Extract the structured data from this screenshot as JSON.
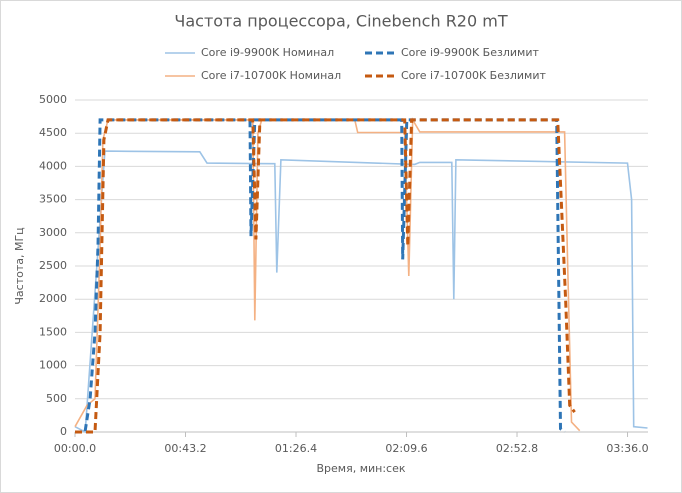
{
  "chart_data": {
    "type": "line",
    "title": "Частота процессора, Cinebench R20 mT",
    "x_label": "Время, мин:сек",
    "y_label": "Частота, МГц",
    "xlim": [
      0,
      224
    ],
    "xticks": [
      {
        "value": 0,
        "label": "00:00.0"
      },
      {
        "value": 43.2,
        "label": "00:43.2"
      },
      {
        "value": 86.4,
        "label": "01:26.4"
      },
      {
        "value": 129.6,
        "label": "02:09.6"
      },
      {
        "value": 172.8,
        "label": "02:52.8"
      },
      {
        "value": 216,
        "label": "03:36.0"
      }
    ],
    "ylim": [
      0,
      5000
    ],
    "yticks": [
      0,
      500,
      1000,
      1500,
      2000,
      2500,
      3000,
      3500,
      4000,
      4500,
      5000
    ],
    "grid": true,
    "series": [
      {
        "name": "Core i9-9900K Безлимит",
        "color": "#2e75b6",
        "dash": true,
        "x": [
          0,
          3.9,
          5.9,
          7.8,
          9,
          9.8,
          68.4,
          68.8,
          70.3,
          127.7,
          128.1,
          129.7,
          188.3,
          189.8,
          191.4
        ],
        "values": [
          0,
          0,
          500,
          1500,
          2800,
          4700,
          4700,
          2950,
          4700,
          4700,
          2600,
          4700,
          4700,
          50,
          0
        ]
      },
      {
        "name": "Core i9-9900K Номинал",
        "color": "#9dc3e6",
        "dash": false,
        "x": [
          0,
          4,
          11.7,
          48.8,
          51.6,
          78.1,
          78.9,
          80.5,
          132.8,
          134.8,
          147.3,
          148.1,
          148.9,
          216,
          217.6,
          218.4,
          223.8
        ],
        "values": [
          80,
          0,
          4230,
          4220,
          4050,
          4040,
          2400,
          4100,
          4030,
          4060,
          4060,
          2000,
          4100,
          4050,
          3500,
          80,
          60
        ]
      },
      {
        "name": "Core i7-10700K Безлимит",
        "color": "#c55a11",
        "dash": true,
        "x": [
          0,
          7.8,
          9.8,
          11.3,
          12.9,
          69.5,
          70.7,
          72.3,
          128.9,
          130.1,
          131.6,
          188.7,
          191.8,
          193.4,
          195.3
        ],
        "values": [
          0,
          0,
          1500,
          4400,
          4700,
          4700,
          2900,
          4700,
          4700,
          2800,
          4700,
          4700,
          2000,
          400,
          300
        ]
      },
      {
        "name": "Core i7-10700K Номинал",
        "color": "#f4b183",
        "dash": false,
        "x": [
          0,
          4.7,
          7.8,
          9.8,
          10.9,
          12.9,
          69.5,
          70.3,
          71.5,
          73,
          109.4,
          110.5,
          128.9,
          130.5,
          132,
          134.8,
          191.4,
          192.6,
          194.1,
          197.3
        ],
        "values": [
          80,
          400,
          500,
          2800,
          4400,
          4700,
          4700,
          1680,
          4500,
          4700,
          4700,
          4510,
          4510,
          2350,
          4700,
          4520,
          4520,
          2500,
          150,
          20
        ]
      }
    ]
  }
}
